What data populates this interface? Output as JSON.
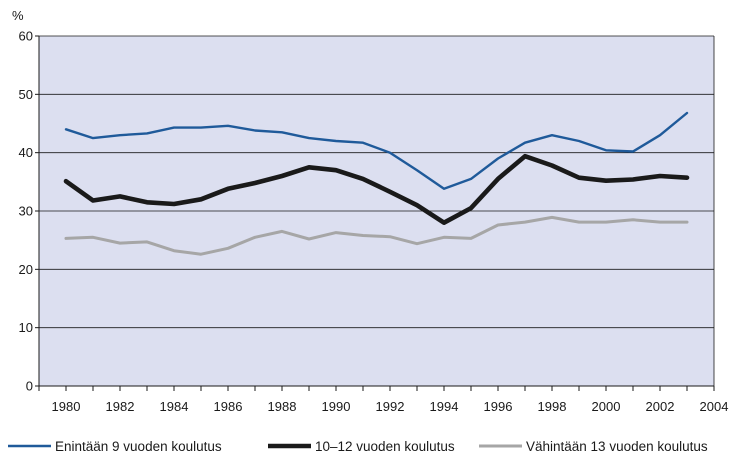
{
  "chart_data": {
    "type": "line",
    "unit_label": "%",
    "x": [
      1980,
      1981,
      1982,
      1983,
      1984,
      1985,
      1986,
      1987,
      1988,
      1989,
      1990,
      1991,
      1992,
      1993,
      1994,
      1995,
      1996,
      1997,
      1998,
      1999,
      2000,
      2001,
      2002,
      2003
    ],
    "xlim": [
      1979,
      2004
    ],
    "xticks": [
      1980,
      1982,
      1984,
      1986,
      1988,
      1990,
      1992,
      1994,
      1996,
      1998,
      2000,
      2002,
      2004
    ],
    "ylim": [
      0,
      60
    ],
    "yticks": [
      0,
      10,
      20,
      30,
      40,
      50,
      60
    ],
    "grid": true,
    "legend_position": "bottom",
    "series": [
      {
        "name": "Enintään 9 vuoden koulutus",
        "color": "#1f5a9a",
        "values": [
          44.0,
          42.5,
          43.0,
          43.3,
          44.3,
          44.3,
          44.6,
          43.8,
          43.5,
          42.5,
          42.0,
          41.7,
          40.0,
          37.0,
          33.8,
          35.5,
          39.0,
          41.7,
          43.0,
          42.0,
          40.4,
          40.2,
          43.0,
          46.8
        ]
      },
      {
        "name": "10–12 vuoden koulutus",
        "color": "#1a1a1a",
        "values": [
          35.1,
          31.8,
          32.5,
          31.5,
          31.2,
          32.0,
          33.8,
          34.8,
          36.0,
          37.5,
          37.0,
          35.5,
          33.3,
          31.0,
          28.0,
          30.5,
          35.5,
          39.4,
          37.8,
          35.7,
          35.2,
          35.4,
          36.0,
          35.7
        ]
      },
      {
        "name": "Vähintään 13 vuoden koulutus",
        "color": "#a6a6a6",
        "values": [
          25.3,
          25.5,
          24.5,
          24.7,
          23.2,
          22.6,
          23.6,
          25.5,
          26.5,
          25.2,
          26.3,
          25.8,
          25.6,
          24.4,
          25.5,
          25.3,
          27.6,
          28.1,
          28.9,
          28.1,
          28.1,
          28.5,
          28.1,
          28.1
        ]
      }
    ]
  }
}
